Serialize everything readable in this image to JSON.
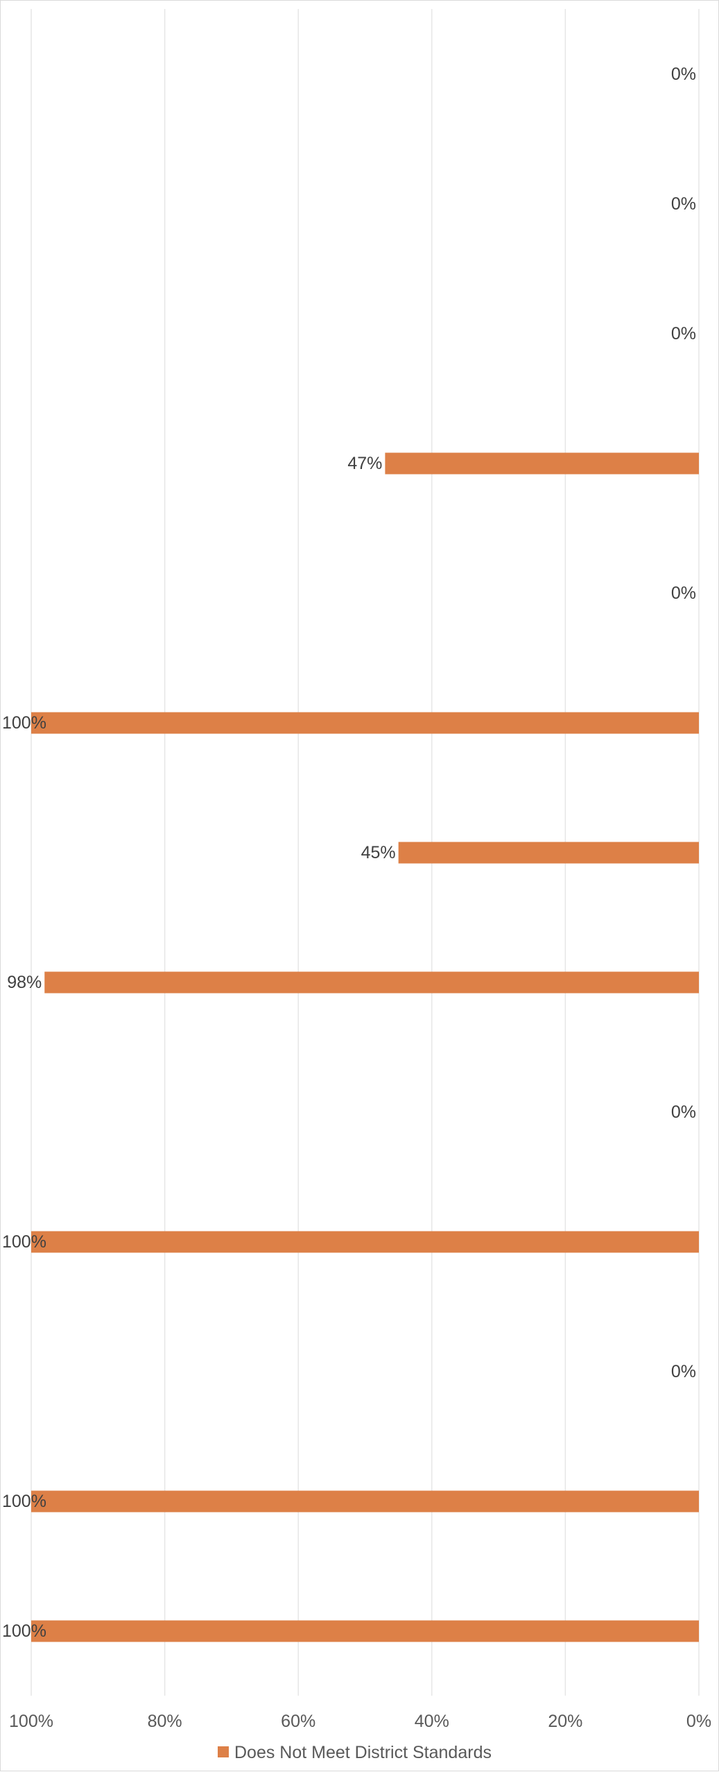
{
  "chart_data": {
    "type": "bar",
    "orientation": "horizontal",
    "x_reversed": true,
    "xlim": [
      0,
      100
    ],
    "x_ticks": [
      "100%",
      "80%",
      "60%",
      "40%",
      "20%",
      "0%"
    ],
    "x_tick_values": [
      100,
      80,
      60,
      40,
      20,
      0
    ],
    "grid": true,
    "legend_position": "bottom",
    "series": [
      {
        "name": "Does Not Meet District Standards",
        "color": "#dd8047",
        "values": [
          0,
          0,
          0,
          47,
          0,
          100,
          45,
          98,
          0,
          100,
          0,
          100,
          100
        ],
        "labels": [
          "0%",
          "0%",
          "0%",
          "47%",
          "0%",
          "100%",
          "45%",
          "98%",
          "0%",
          "100%",
          "0%",
          "100%",
          "100%"
        ]
      }
    ]
  }
}
